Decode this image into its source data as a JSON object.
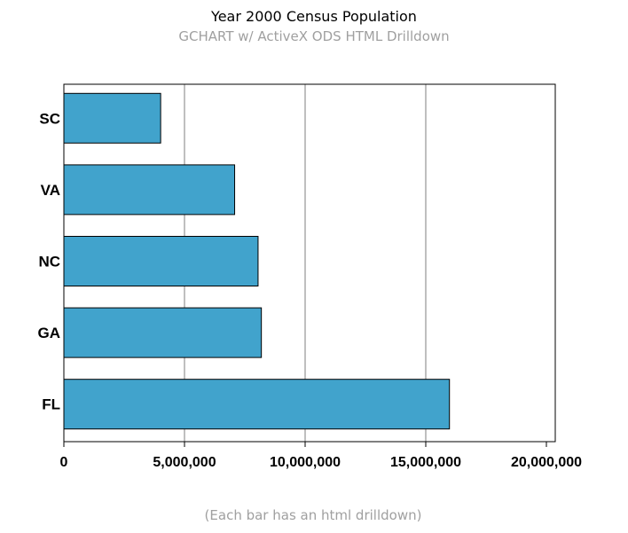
{
  "chart_data": {
    "type": "bar",
    "orientation": "horizontal",
    "title": "Year 2000 Census Population",
    "subtitle": "GCHART w/ ActiveX ODS HTML Drilldown",
    "footnote": "(Each bar has an html drilldown)",
    "categories": [
      "SC",
      "VA",
      "NC",
      "GA",
      "FL"
    ],
    "values": [
      4012012,
      7078515,
      8049313,
      8186453,
      15982378
    ],
    "xlim": [
      0,
      20000000
    ],
    "x_ticks": [
      0,
      5000000,
      10000000,
      15000000,
      20000000
    ],
    "x_tick_labels": [
      "0",
      "5,000,000",
      "10,000,000",
      "15,000,000",
      "20,000,000"
    ],
    "grid": true,
    "bar_color": "#41a3cc"
  }
}
